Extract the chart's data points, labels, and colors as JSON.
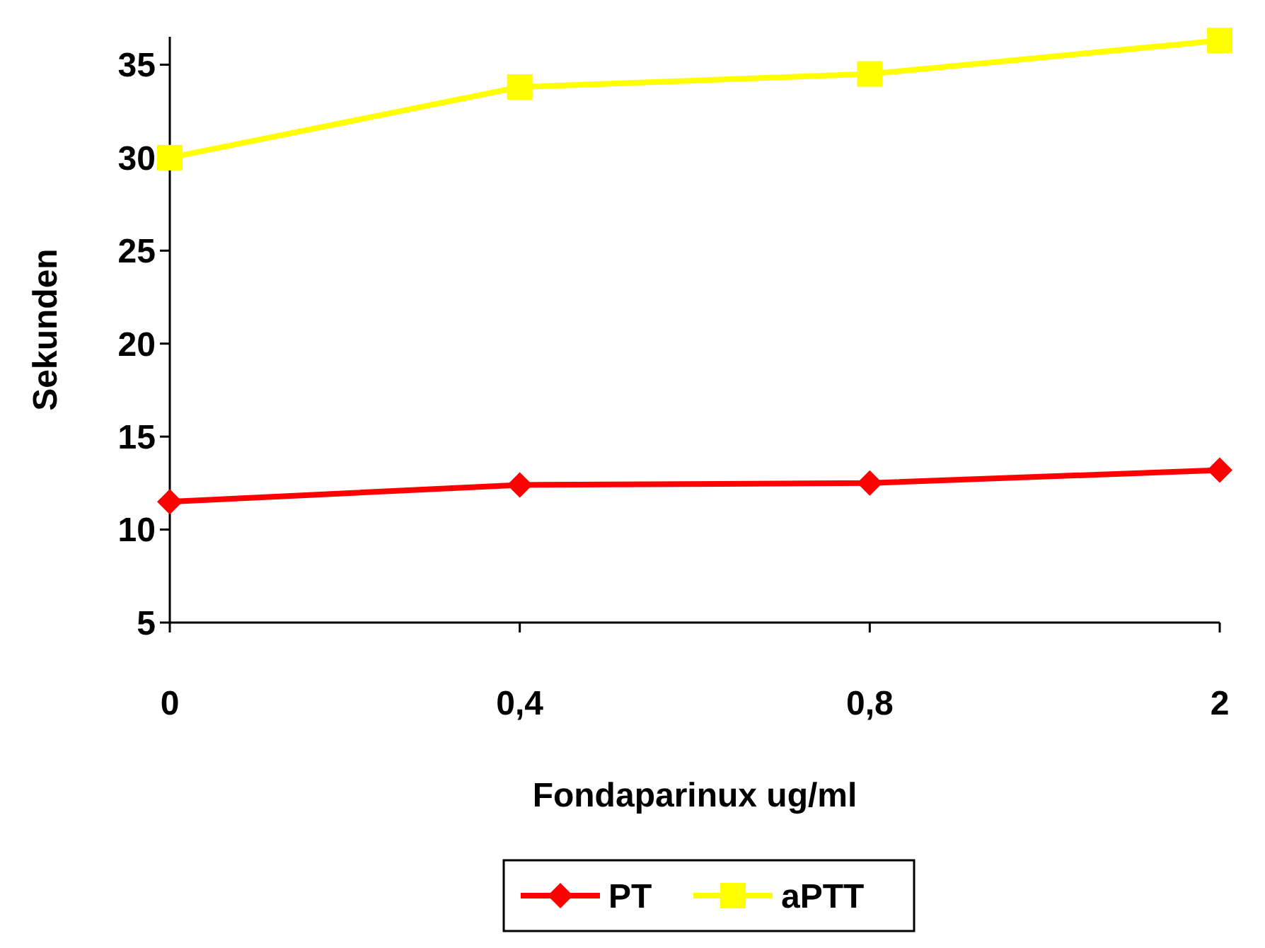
{
  "chart_data": {
    "type": "line",
    "xlabel": "Fondaparinux ug/ml",
    "ylabel": "Sekunden",
    "categories": [
      "0",
      "0,4",
      "0,8",
      "2"
    ],
    "series": [
      {
        "name": "PT",
        "color": "#ff0000",
        "values": [
          11.5,
          12.4,
          12.5,
          13.2
        ],
        "marker": "diamond"
      },
      {
        "name": "aPTT",
        "color": "#ffff00",
        "values": [
          30.0,
          33.8,
          34.5,
          36.3
        ],
        "marker": "square"
      }
    ],
    "ylim": [
      5,
      36.5
    ],
    "yticks": [
      5,
      10,
      15,
      20,
      25,
      30,
      35
    ],
    "grid": false,
    "legend": "bottom",
    "line_style": "solid"
  }
}
